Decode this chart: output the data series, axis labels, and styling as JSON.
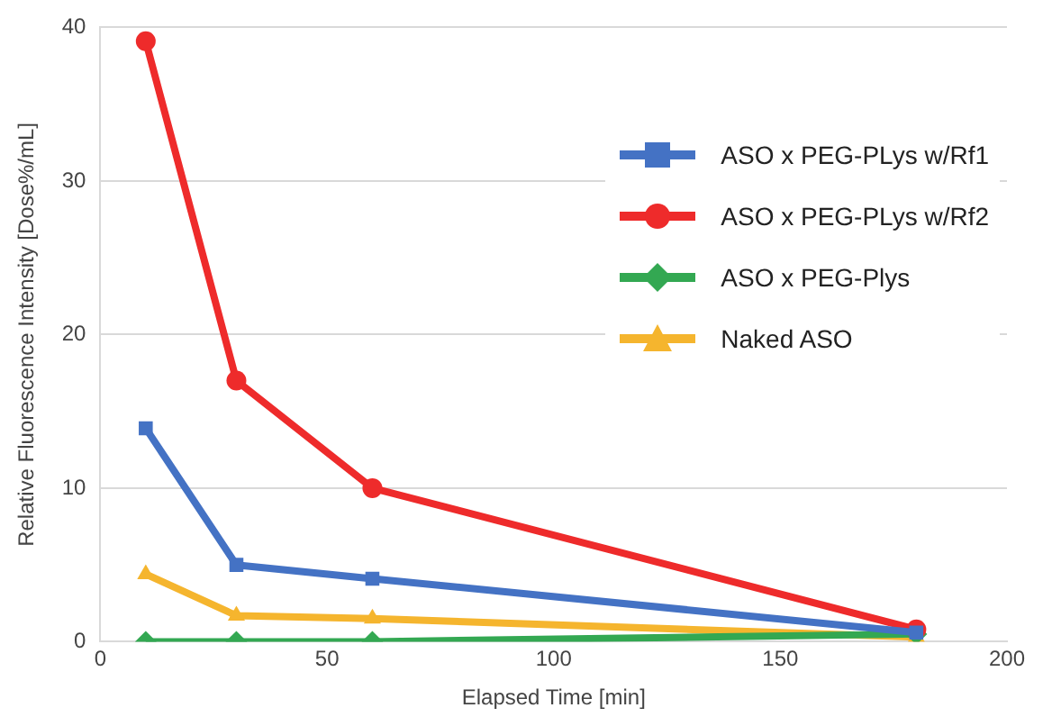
{
  "chart_data": {
    "type": "line",
    "xlabel": "Elapsed Time [min]",
    "ylabel": "Relative Fluorescence Intensity [Dose%/mL]",
    "x": [
      10,
      30,
      60,
      180
    ],
    "series": [
      {
        "name": "ASO x PEG-PLys w/Rf1",
        "color": "#4472c4",
        "marker": "square",
        "values": [
          13.9,
          5.0,
          4.1,
          0.6
        ]
      },
      {
        "name": "ASO x PEG-PLys w/Rf2",
        "color": "#ee2b2b",
        "marker": "circle",
        "values": [
          39.1,
          17.0,
          10.0,
          0.8
        ]
      },
      {
        "name": "ASO x PEG-Plys",
        "color": "#33a852",
        "marker": "diamond",
        "values": [
          0,
          0,
          0,
          0.5
        ]
      },
      {
        "name": "Naked ASO",
        "color": "#f5b52e",
        "marker": "triangle",
        "values": [
          4.4,
          1.7,
          1.5,
          0.3
        ]
      }
    ],
    "xlim": [
      0,
      200
    ],
    "xticks": [
      0,
      50,
      100,
      150,
      200
    ],
    "ylim": [
      0,
      40
    ],
    "yticks": [
      0,
      10,
      20,
      30,
      40
    ],
    "grid": "y",
    "legend": "top right",
    "line_style": "solid"
  }
}
